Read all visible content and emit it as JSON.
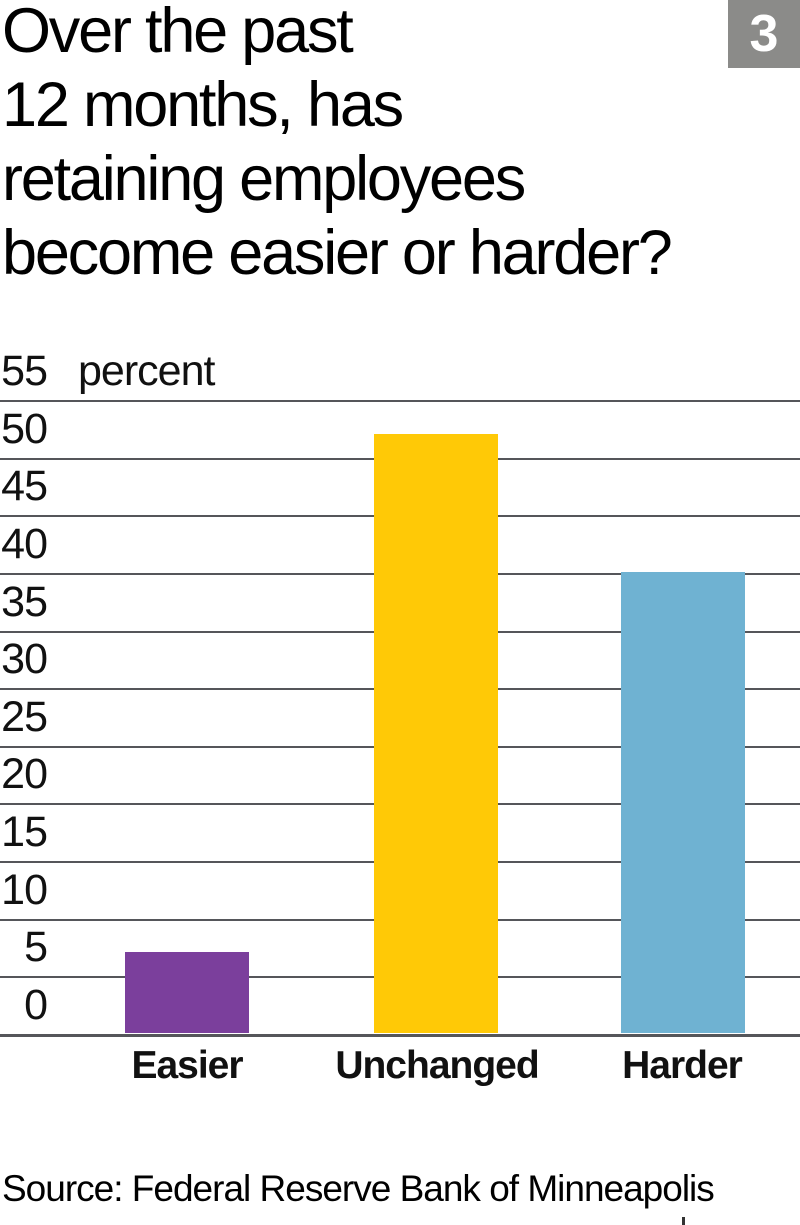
{
  "figure": {
    "number": "3"
  },
  "chart_data": {
    "type": "bar",
    "title": "Over the past\n12 months, has\nretaining employees\nbecome easier or harder?",
    "categories": [
      "Easier",
      "Unchanged",
      "Harder"
    ],
    "values": [
      7,
      52,
      40
    ],
    "bar_colors": [
      "#7B3F9C",
      "#FFC906",
      "#6FB2D2"
    ],
    "unit_label": "percent",
    "xlabel": "",
    "ylabel": "percent",
    "ylim": [
      0,
      55
    ],
    "yticks": [
      0,
      5,
      10,
      15,
      20,
      25,
      30,
      35,
      40,
      45,
      50,
      55
    ],
    "grid": true,
    "legend": "none",
    "gridline_color": "#55565A",
    "source": "Source: Federal Reserve Bank of Minneapolis"
  }
}
